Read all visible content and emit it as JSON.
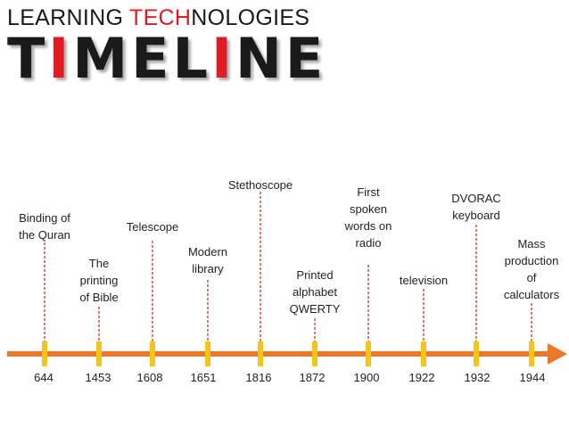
{
  "header": {
    "subtitle_parts": [
      "LEARNING ",
      "TECH",
      "NOLOGIES"
    ],
    "title_letters": [
      "T",
      "I",
      "M",
      "E",
      "L",
      "I",
      "N",
      "E"
    ],
    "title_letter_colors": [
      "#1a1a1a",
      "#e01b24",
      "#1a1a1a",
      "#1a1a1a",
      "#1a1a1a",
      "#e01b24",
      "#1a1a1a",
      "#1a1a1a"
    ]
  },
  "colors": {
    "axis": "#e8792b",
    "tick": "#f5c518",
    "connector": "#c0392b",
    "accent": "#e01b24"
  },
  "events": [
    {
      "year": "644",
      "label": "Binding of\nthe Quran"
    },
    {
      "year": "1453",
      "label": "The\nprinting\nof Bible"
    },
    {
      "year": "1608",
      "label": "Telescope"
    },
    {
      "year": "1651",
      "label": "Modern\nlibrary"
    },
    {
      "year": "1816",
      "label": "Stethoscope"
    },
    {
      "year": "1872",
      "label": "Printed\nalphabet\nQWERTY"
    },
    {
      "year": "1900",
      "label": "First\nspoken\nwords on\nradio"
    },
    {
      "year": "1922",
      "label": "television"
    },
    {
      "year": "1932",
      "label": "DVORAC\nkeyboard"
    },
    {
      "year": "1944",
      "label": "Mass\nproduction\nof\ncalculators"
    }
  ]
}
